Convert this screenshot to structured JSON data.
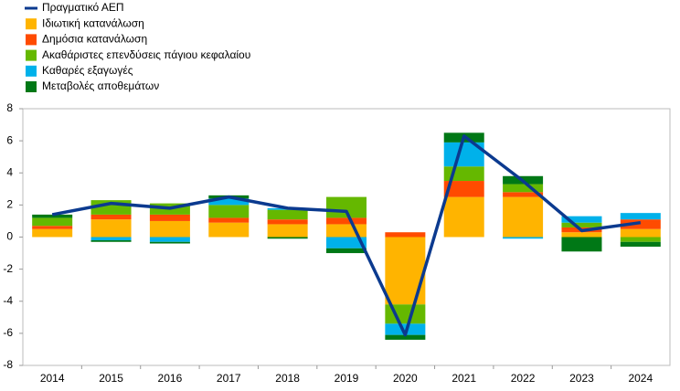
{
  "chart_data": {
    "type": "bar",
    "stacked": true,
    "categories": [
      "2014",
      "2015",
      "2016",
      "2017",
      "2018",
      "2019",
      "2020",
      "2021",
      "2022",
      "2023",
      "2024"
    ],
    "series": [
      {
        "name": "Πραγματικό ΑΕΠ",
        "type": "line",
        "color": "#0b3a8f",
        "values": [
          1.4,
          2.1,
          1.8,
          2.5,
          1.8,
          1.6,
          -6.1,
          6.3,
          3.5,
          0.4,
          0.9
        ]
      },
      {
        "name": "Ιδιωτική κατανάλωση",
        "color": "#ffb400",
        "values": [
          0.5,
          1.1,
          1.0,
          0.9,
          0.8,
          0.8,
          -4.2,
          2.5,
          2.5,
          0.3,
          0.5
        ]
      },
      {
        "name": "Δημόσια κατανάλωση",
        "color": "#ff4b00",
        "values": [
          0.2,
          0.3,
          0.4,
          0.3,
          0.3,
          0.4,
          0.3,
          1.0,
          0.3,
          0.3,
          0.6
        ]
      },
      {
        "name": "Ακαθάριστες επενδύσεις πάγιου κεφαλαίου",
        "color": "#65b800",
        "values": [
          0.5,
          0.9,
          0.7,
          0.8,
          0.6,
          1.3,
          -1.2,
          0.9,
          0.5,
          0.3,
          -0.3
        ]
      },
      {
        "name": "Καθαρές εξαγωγές",
        "color": "#00b1ea",
        "values": [
          0.0,
          -0.2,
          -0.3,
          0.4,
          0.1,
          -0.7,
          -0.7,
          1.5,
          -0.1,
          0.4,
          0.4
        ]
      },
      {
        "name": "Μεταβολές αποθεμάτων",
        "color": "#007816",
        "values": [
          0.2,
          -0.1,
          -0.1,
          0.2,
          -0.1,
          -0.3,
          -0.3,
          0.6,
          0.5,
          -0.9,
          -0.3
        ]
      }
    ],
    "ylim": [
      -8,
      8
    ],
    "yticks": [
      -8,
      -6,
      -4,
      -2,
      0,
      2,
      4,
      6,
      8
    ],
    "grid": false
  }
}
